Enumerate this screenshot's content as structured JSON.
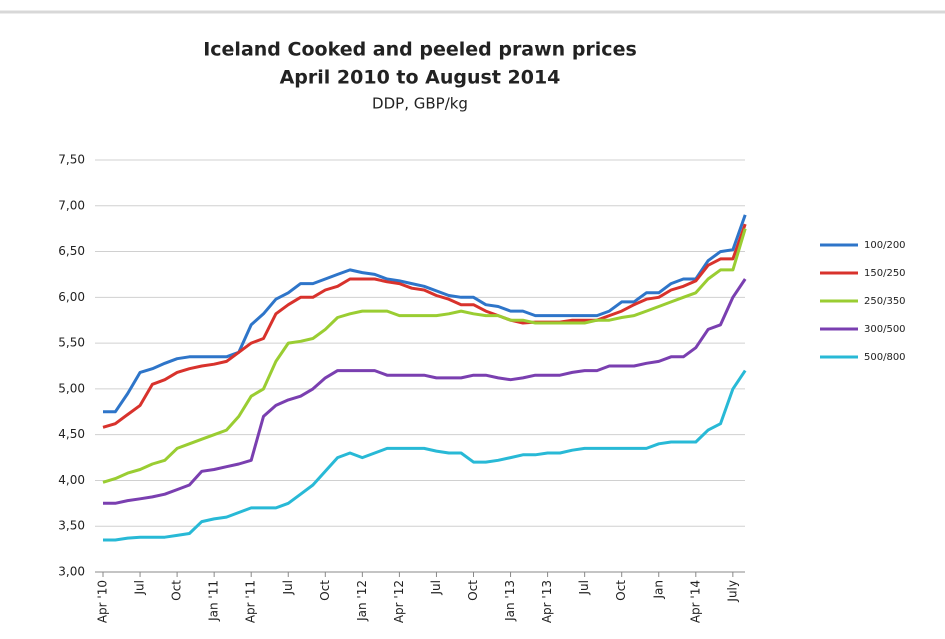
{
  "chart_data": {
    "type": "line",
    "title": "Iceland Cooked and peeled prawn prices",
    "subtitle": "April 2010 to August 2014",
    "unit_label": "DDP, GBP/kg",
    "categories": [
      "Apr '10",
      null,
      null,
      "Jul",
      null,
      null,
      "Oct",
      null,
      null,
      "Jan '11",
      null,
      null,
      "Apr '11",
      null,
      null,
      "Jul",
      null,
      null,
      "Oct",
      null,
      null,
      "Jan '12",
      null,
      null,
      "Apr '12",
      null,
      null,
      "Jul",
      null,
      null,
      "Oct",
      null,
      null,
      "Jan '13",
      null,
      null,
      "Apr '13",
      null,
      null,
      "Jul",
      null,
      null,
      "Oct",
      null,
      null,
      "Jan",
      null,
      null,
      "Apr '14",
      null,
      null,
      "July",
      null
    ],
    "ylim": [
      3,
      7.5
    ],
    "yticks": [
      {
        "value": 3,
        "label": "3,00"
      },
      {
        "value": 3.5,
        "label": "3,50"
      },
      {
        "value": 4,
        "label": "4,00"
      },
      {
        "value": 4.5,
        "label": "4,50"
      },
      {
        "value": 5,
        "label": "5,00"
      },
      {
        "value": 5.5,
        "label": "5,50"
      },
      {
        "value": 6,
        "label": "6,00"
      },
      {
        "value": 6.5,
        "label": "6,50"
      },
      {
        "value": 7,
        "label": "7,00"
      },
      {
        "value": 7.5,
        "label": "7,50"
      }
    ],
    "grid": true,
    "legend": "right",
    "series": [
      {
        "name": "100/200",
        "color": "#2e75c9",
        "values": [
          4.75,
          4.75,
          4.95,
          5.18,
          5.22,
          5.28,
          5.33,
          5.35,
          5.35,
          5.35,
          5.35,
          5.4,
          5.7,
          5.82,
          5.98,
          6.05,
          6.15,
          6.15,
          6.2,
          6.25,
          6.3,
          6.27,
          6.25,
          6.2,
          6.18,
          6.15,
          6.12,
          6.07,
          6.02,
          6.0,
          6.0,
          5.92,
          5.9,
          5.85,
          5.85,
          5.8,
          5.8,
          5.8,
          5.8,
          5.8,
          5.8,
          5.85,
          5.95,
          5.95,
          6.05,
          6.05,
          6.15,
          6.2,
          6.2,
          6.4,
          6.5,
          6.52,
          6.9
        ]
      },
      {
        "name": "150/250",
        "color": "#d8322c",
        "values": [
          4.58,
          4.62,
          4.72,
          4.82,
          5.05,
          5.1,
          5.18,
          5.22,
          5.25,
          5.27,
          5.3,
          5.4,
          5.5,
          5.55,
          5.82,
          5.92,
          6.0,
          6.0,
          6.08,
          6.12,
          6.2,
          6.2,
          6.2,
          6.17,
          6.15,
          6.1,
          6.08,
          6.02,
          5.98,
          5.92,
          5.92,
          5.85,
          5.8,
          5.75,
          5.72,
          5.73,
          5.73,
          5.73,
          5.75,
          5.75,
          5.75,
          5.8,
          5.85,
          5.92,
          5.98,
          6.0,
          6.08,
          6.12,
          6.18,
          6.35,
          6.42,
          6.42,
          6.8
        ]
      },
      {
        "name": "250/350",
        "color": "#9acd32",
        "values": [
          3.98,
          4.02,
          4.08,
          4.12,
          4.18,
          4.22,
          4.35,
          4.4,
          4.45,
          4.5,
          4.55,
          4.7,
          4.92,
          5.0,
          5.3,
          5.5,
          5.52,
          5.55,
          5.65,
          5.78,
          5.82,
          5.85,
          5.85,
          5.85,
          5.8,
          5.8,
          5.8,
          5.8,
          5.82,
          5.85,
          5.82,
          5.8,
          5.8,
          5.75,
          5.75,
          5.72,
          5.72,
          5.72,
          5.72,
          5.72,
          5.75,
          5.75,
          5.78,
          5.8,
          5.85,
          5.9,
          5.95,
          6.0,
          6.05,
          6.2,
          6.3,
          6.3,
          6.75
        ]
      },
      {
        "name": "300/500",
        "color": "#7a3fb0",
        "values": [
          3.75,
          3.75,
          3.78,
          3.8,
          3.82,
          3.85,
          3.9,
          3.95,
          4.1,
          4.12,
          4.15,
          4.18,
          4.22,
          4.7,
          4.82,
          4.88,
          4.92,
          5.0,
          5.12,
          5.2,
          5.2,
          5.2,
          5.2,
          5.15,
          5.15,
          5.15,
          5.15,
          5.12,
          5.12,
          5.12,
          5.15,
          5.15,
          5.12,
          5.1,
          5.12,
          5.15,
          5.15,
          5.15,
          5.18,
          5.2,
          5.2,
          5.25,
          5.25,
          5.25,
          5.28,
          5.3,
          5.35,
          5.35,
          5.45,
          5.65,
          5.7,
          6.0,
          6.2
        ]
      },
      {
        "name": "500/800",
        "color": "#28b9d6",
        "values": [
          3.35,
          3.35,
          3.37,
          3.38,
          3.38,
          3.38,
          3.4,
          3.42,
          3.55,
          3.58,
          3.6,
          3.65,
          3.7,
          3.7,
          3.7,
          3.75,
          3.85,
          3.95,
          4.1,
          4.25,
          4.3,
          4.25,
          4.3,
          4.35,
          4.35,
          4.35,
          4.35,
          4.32,
          4.3,
          4.3,
          4.2,
          4.2,
          4.22,
          4.25,
          4.28,
          4.28,
          4.3,
          4.3,
          4.33,
          4.35,
          4.35,
          4.35,
          4.35,
          4.35,
          4.35,
          4.4,
          4.42,
          4.42,
          4.42,
          4.55,
          4.62,
          5.0,
          5.2
        ]
      }
    ]
  }
}
